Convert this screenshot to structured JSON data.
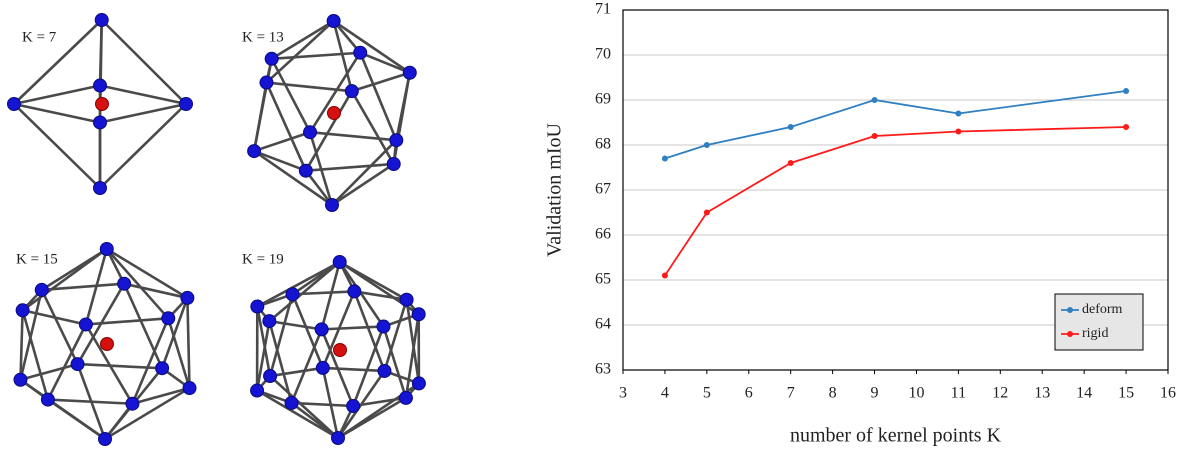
{
  "diagrams": [
    {
      "label": "K = 7"
    },
    {
      "label": "K = 13"
    },
    {
      "label": "K = 15"
    },
    {
      "label": "K = 19"
    }
  ],
  "chart_data": {
    "type": "line",
    "x_label": "number of kernel points K",
    "y_label": "Validation mIoU",
    "x": [
      4,
      5,
      7,
      9,
      11,
      15
    ],
    "series": [
      {
        "name": "deform",
        "color": "#2f7fc1",
        "values": [
          67.7,
          68.0,
          68.4,
          69.0,
          68.7,
          69.2
        ]
      },
      {
        "name": "rigid",
        "color": "#ff1a1a",
        "values": [
          65.1,
          66.5,
          67.6,
          68.2,
          68.3,
          68.4
        ]
      }
    ],
    "xlim": [
      3,
      16
    ],
    "xticks": [
      3,
      4,
      5,
      6,
      7,
      8,
      9,
      10,
      11,
      12,
      13,
      14,
      15,
      16
    ],
    "ylim": [
      63,
      71
    ],
    "yticks": [
      63,
      64,
      65,
      66,
      67,
      68,
      69,
      70,
      71
    ],
    "grid": true,
    "legend": "lower-right"
  }
}
